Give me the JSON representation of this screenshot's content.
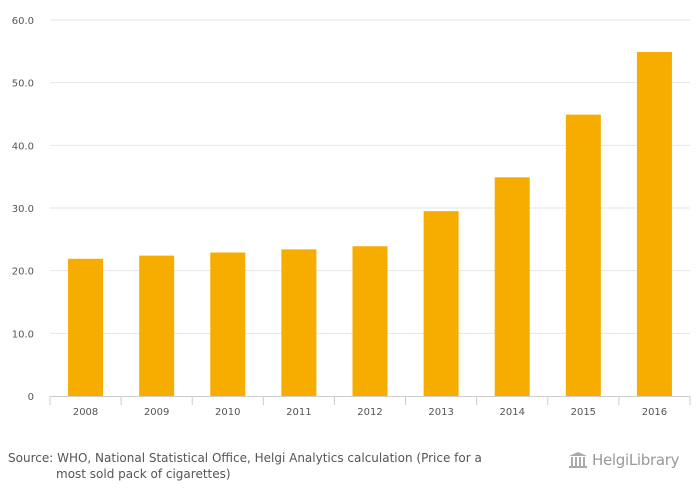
{
  "chart_data": {
    "type": "bar",
    "categories": [
      "2008",
      "2009",
      "2010",
      "2011",
      "2012",
      "2013",
      "2014",
      "2015",
      "2016"
    ],
    "values": [
      21.9,
      22.4,
      22.9,
      23.4,
      23.9,
      29.5,
      34.9,
      44.9,
      54.9
    ],
    "ylim": [
      0,
      60
    ],
    "yticks": [
      "0",
      "10.0",
      "20.0",
      "30.0",
      "40.0",
      "50.0",
      "60.0"
    ],
    "grid": true,
    "bar_color": "#F7AD00"
  },
  "footer": {
    "source_line1": "Source: WHO, National Statistical Office, Helgi Analytics calculation (Price for a",
    "source_line2": "most sold pack of cigarettes)",
    "brand": "HelgiLibrary"
  },
  "colors": {
    "grid": "#e6e6e6",
    "axis": "#cccccc",
    "text": "#555555",
    "logo": "#999999"
  }
}
